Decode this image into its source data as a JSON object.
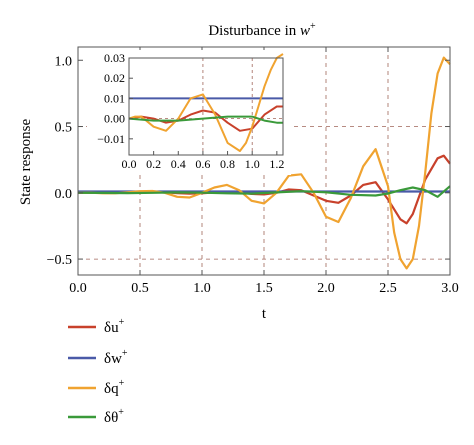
{
  "chart_data": {
    "type": "line",
    "title_prefix": "Disturbance in ",
    "title_var": "w",
    "title_sup": "+",
    "xlabel": "t",
    "ylabel": "State response",
    "xlim": [
      0.0,
      3.0
    ],
    "ylim": [
      -0.62,
      1.1
    ],
    "xticks": [
      0.0,
      0.5,
      1.0,
      1.5,
      2.0,
      2.5,
      3.0
    ],
    "xtick_labels": [
      "0.0",
      "0.5",
      "1.0",
      "1.5",
      "2.0",
      "2.5",
      "3.0"
    ],
    "yticks": [
      -0.5,
      0.0,
      0.5,
      1.0
    ],
    "ytick_labels": [
      "−0.5",
      "0.0",
      "0.5",
      "1.0"
    ],
    "grid": true,
    "grid_style": "dashed",
    "grid_x": [
      0.5,
      1.0,
      1.5,
      2.0,
      2.5
    ],
    "grid_y": [
      -0.5,
      0.5
    ],
    "legend_position": "bottom-left",
    "series": [
      {
        "name": "δu",
        "legend_base": "δu",
        "legend_sup": "+",
        "color": "#c8412b",
        "x": [
          0.0,
          0.1,
          0.2,
          0.3,
          0.4,
          0.5,
          0.6,
          0.7,
          0.8,
          0.9,
          1.0,
          1.1,
          1.2,
          1.3,
          1.4,
          1.5,
          1.6,
          1.7,
          1.8,
          1.9,
          2.0,
          2.1,
          2.2,
          2.3,
          2.4,
          2.5,
          2.6,
          2.65,
          2.7,
          2.8,
          2.9,
          2.95,
          3.0
        ],
        "values": [
          0.0,
          0.0,
          0.0,
          0.0,
          0.0,
          0.002,
          0.005,
          0.004,
          -0.002,
          -0.006,
          -0.004,
          0.003,
          0.008,
          0.004,
          -0.008,
          -0.012,
          0.0,
          0.025,
          0.02,
          -0.02,
          -0.06,
          -0.075,
          -0.02,
          0.06,
          0.08,
          -0.05,
          -0.2,
          -0.23,
          -0.16,
          0.1,
          0.26,
          0.28,
          0.22
        ]
      },
      {
        "name": "δw",
        "legend_base": "δw",
        "legend_sup": "+",
        "color": "#4a5aa8",
        "x": [
          0.0,
          0.5,
          1.0,
          1.5,
          2.0,
          2.5,
          3.0
        ],
        "values": [
          0.01,
          0.01,
          0.01,
          0.01,
          0.01,
          0.01,
          0.01
        ]
      },
      {
        "name": "δq",
        "legend_base": "δq",
        "legend_sup": "+",
        "color": "#f0a330",
        "x": [
          0.0,
          0.1,
          0.2,
          0.3,
          0.4,
          0.5,
          0.6,
          0.7,
          0.8,
          0.9,
          1.0,
          1.1,
          1.2,
          1.3,
          1.4,
          1.5,
          1.6,
          1.7,
          1.8,
          1.9,
          2.0,
          2.1,
          2.2,
          2.3,
          2.4,
          2.5,
          2.55,
          2.6,
          2.65,
          2.7,
          2.75,
          2.8,
          2.85,
          2.9,
          2.95,
          3.0
        ],
        "values": [
          0.0,
          0.001,
          -0.004,
          -0.004,
          0.004,
          0.012,
          0.014,
          0.0,
          -0.03,
          -0.035,
          0.0,
          0.04,
          0.06,
          0.02,
          -0.06,
          -0.08,
          0.0,
          0.13,
          0.14,
          0.0,
          -0.18,
          -0.22,
          -0.04,
          0.2,
          0.33,
          0.05,
          -0.3,
          -0.5,
          -0.57,
          -0.5,
          -0.25,
          0.15,
          0.6,
          0.9,
          1.02,
          0.97
        ]
      },
      {
        "name": "δθ",
        "legend_base": "δθ",
        "legend_sup": "+",
        "color": "#3a9a3a",
        "x": [
          0.0,
          0.2,
          0.4,
          0.6,
          0.8,
          1.0,
          1.2,
          1.4,
          1.6,
          1.8,
          2.0,
          2.2,
          2.4,
          2.5,
          2.6,
          2.7,
          2.8,
          2.9,
          3.0
        ],
        "values": [
          0.0,
          -0.001,
          -0.002,
          0.0,
          0.003,
          0.001,
          -0.004,
          -0.006,
          0.003,
          0.012,
          0.004,
          -0.015,
          -0.02,
          -0.005,
          0.02,
          0.04,
          0.02,
          -0.03,
          0.05
        ]
      }
    ],
    "inset": {
      "xlim": [
        0.0,
        1.25
      ],
      "ylim": [
        -0.018,
        0.03
      ],
      "xticks": [
        0.0,
        0.2,
        0.4,
        0.6,
        0.8,
        1.0,
        1.2
      ],
      "xtick_labels": [
        "0.0",
        "0.2",
        "0.4",
        "0.6",
        "0.8",
        "1.0",
        "1.2"
      ],
      "yticks": [
        -0.01,
        0.0,
        0.01,
        0.02,
        0.03
      ],
      "ytick_labels": [
        "−0.01",
        "0.00",
        "0.01",
        "0.02",
        "0.03"
      ],
      "grid_x": [
        0.6,
        1.0
      ],
      "grid_y": [
        0.0
      ],
      "series": [
        {
          "color": "#c8412b",
          "x": [
            0.0,
            0.1,
            0.2,
            0.3,
            0.4,
            0.5,
            0.6,
            0.7,
            0.8,
            0.9,
            1.0,
            1.1,
            1.2,
            1.25
          ],
          "values": [
            0.0,
            0.001,
            0.0,
            -0.002,
            -0.001,
            0.002,
            0.004,
            0.003,
            -0.002,
            -0.006,
            -0.005,
            0.002,
            0.006,
            0.006
          ]
        },
        {
          "color": "#4a5aa8",
          "x": [
            0.0,
            1.25
          ],
          "values": [
            0.01,
            0.01
          ]
        },
        {
          "color": "#f0a330",
          "x": [
            0.0,
            0.05,
            0.1,
            0.2,
            0.3,
            0.4,
            0.5,
            0.6,
            0.7,
            0.8,
            0.9,
            0.95,
            1.0,
            1.05,
            1.1,
            1.15,
            1.2,
            1.25
          ],
          "values": [
            0.0,
            0.001,
            0.001,
            -0.004,
            -0.006,
            0.0,
            0.01,
            0.012,
            0.002,
            -0.012,
            -0.016,
            -0.012,
            -0.004,
            0.006,
            0.016,
            0.024,
            0.03,
            0.032
          ]
        },
        {
          "color": "#3a9a3a",
          "x": [
            0.0,
            0.2,
            0.4,
            0.6,
            0.8,
            1.0,
            1.1,
            1.2,
            1.25
          ],
          "values": [
            0.0,
            -0.001,
            -0.001,
            0.0,
            0.001,
            0.001,
            -0.001,
            -0.002,
            -0.002
          ]
        }
      ]
    }
  }
}
